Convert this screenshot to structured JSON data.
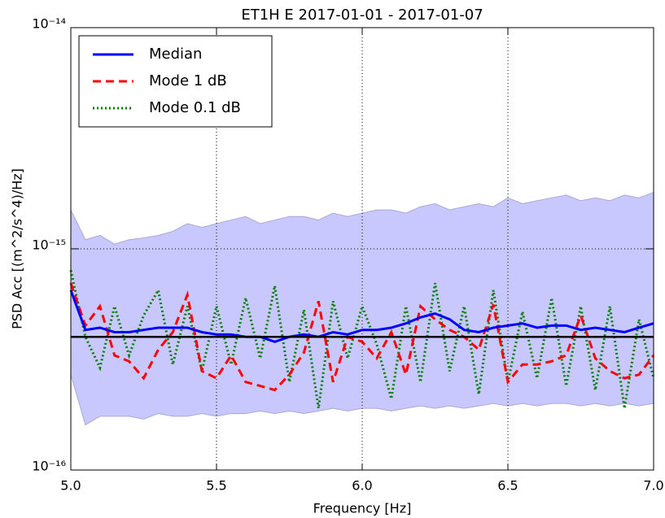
{
  "chart_data": {
    "type": "line",
    "title": "ET1H E 2017-01-01 - 2017-01-07",
    "xlabel": "Frequency [Hz]",
    "ylabel": "PSD Acc [(m^2/s^4)/Hz]",
    "log_y": true,
    "legend": "upper left",
    "xlim": [
      5.0,
      7.0
    ],
    "ylim": [
      1e-16,
      1e-14
    ],
    "xticks": [
      {
        "value": 5.0,
        "label": "5.0"
      },
      5.5,
      {
        "value": 6.0,
        "label": "6.0"
      },
      6.5,
      {
        "value": 7.0,
        "label": "7.0"
      }
    ],
    "yticks": [
      {
        "value": 1e-16,
        "label": "10⁻¹⁶"
      },
      {
        "value": 1e-15,
        "label": "10⁻¹⁵"
      },
      {
        "value": 1e-14,
        "label": "10⁻¹⁴"
      }
    ],
    "grid": true,
    "x": [
      5.0,
      5.05,
      5.1,
      5.15,
      5.2,
      5.25,
      5.3,
      5.35,
      5.4,
      5.45,
      5.5,
      5.55,
      5.6,
      5.65,
      5.7,
      5.75,
      5.8,
      5.85,
      5.9,
      5.95,
      6.0,
      6.05,
      6.1,
      6.15,
      6.2,
      6.25,
      6.3,
      6.35,
      6.4,
      6.45,
      6.5,
      6.55,
      6.6,
      6.65,
      6.7,
      6.75,
      6.8,
      6.85,
      6.9,
      6.95,
      7.0
    ],
    "band": {
      "color": "#c8c8ff",
      "upper": [
        1.5e-15,
        1.1e-15,
        1.15e-15,
        1.05e-15,
        1.1e-15,
        1.12e-15,
        1.15e-15,
        1.2e-15,
        1.3e-15,
        1.25e-15,
        1.3e-15,
        1.35e-15,
        1.4e-15,
        1.3e-15,
        1.35e-15,
        1.4e-15,
        1.4e-15,
        1.35e-15,
        1.45e-15,
        1.4e-15,
        1.45e-15,
        1.5e-15,
        1.5e-15,
        1.45e-15,
        1.55e-15,
        1.6e-15,
        1.5e-15,
        1.55e-15,
        1.6e-15,
        1.55e-15,
        1.7e-15,
        1.6e-15,
        1.65e-15,
        1.7e-15,
        1.75e-15,
        1.65e-15,
        1.7e-15,
        1.65e-15,
        1.75e-15,
        1.7e-15,
        1.8e-15
      ],
      "lower": [
        2.7e-16,
        1.6e-16,
        1.75e-16,
        1.75e-16,
        1.75e-16,
        1.7e-16,
        1.8e-16,
        1.75e-16,
        1.75e-16,
        1.8e-16,
        1.75e-16,
        1.8e-16,
        1.8e-16,
        1.85e-16,
        1.8e-16,
        1.85e-16,
        1.8e-16,
        1.85e-16,
        1.9e-16,
        1.85e-16,
        1.9e-16,
        1.9e-16,
        1.85e-16,
        1.9e-16,
        1.95e-16,
        1.9e-16,
        1.95e-16,
        1.9e-16,
        1.95e-16,
        2e-16,
        1.95e-16,
        2e-16,
        1.95e-16,
        2e-16,
        2e-16,
        1.95e-16,
        2e-16,
        1.95e-16,
        2e-16,
        1.95e-16,
        2e-16
      ]
    },
    "reference_line": {
      "value": 4e-16,
      "color": "#000000"
    },
    "series": [
      {
        "name": "Median",
        "color": "#0000ff",
        "linestyle": "solid",
        "values": [
          6.5e-16,
          4.3e-16,
          4.4e-16,
          4.2e-16,
          4.2e-16,
          4.3e-16,
          4.4e-16,
          4.4e-16,
          4.4e-16,
          4.2e-16,
          4.1e-16,
          4.1e-16,
          4e-16,
          4e-16,
          3.8e-16,
          4e-16,
          4.1e-16,
          4e-16,
          4.2e-16,
          4.1e-16,
          4.3e-16,
          4.3e-16,
          4.4e-16,
          4.6e-16,
          4.9e-16,
          5.1e-16,
          4.8e-16,
          4.3e-16,
          4.2e-16,
          4.4e-16,
          4.5e-16,
          4.6e-16,
          4.4e-16,
          4.5e-16,
          4.5e-16,
          4.3e-16,
          4.4e-16,
          4.3e-16,
          4.2e-16,
          4.4e-16,
          4.6e-16
        ]
      },
      {
        "name": "Mode 1 dB",
        "color": "#ff0000",
        "linestyle": "dashed",
        "values": [
          7e-16,
          4.5e-16,
          5.5e-16,
          3.3e-16,
          3.1e-16,
          2.6e-16,
          3.5e-16,
          4.2e-16,
          6.2e-16,
          2.8e-16,
          2.6e-16,
          3.3e-16,
          2.5e-16,
          2.4e-16,
          2.3e-16,
          2.7e-16,
          3.4e-16,
          5.8e-16,
          2.5e-16,
          4e-16,
          3.8e-16,
          3.2e-16,
          4.2e-16,
          2.7e-16,
          5.5e-16,
          4.8e-16,
          4.3e-16,
          4e-16,
          3.5e-16,
          5.6e-16,
          2.5e-16,
          3e-16,
          3e-16,
          3.1e-16,
          3.3e-16,
          5e-16,
          3.2e-16,
          2.8e-16,
          2.6e-16,
          2.7e-16,
          3.3e-16
        ]
      },
      {
        "name": "Mode 0.1 dB",
        "color": "#007f00",
        "linestyle": "dotted",
        "values": [
          8e-16,
          4e-16,
          2.9e-16,
          5.5e-16,
          3.3e-16,
          5e-16,
          6.5e-16,
          3e-16,
          5.5e-16,
          2.8e-16,
          5.5e-16,
          3e-16,
          6e-16,
          3.2e-16,
          6.8e-16,
          2.5e-16,
          5.3e-16,
          1.9e-16,
          5.8e-16,
          3.2e-16,
          5.5e-16,
          3.7e-16,
          2.1e-16,
          5.5e-16,
          2.5e-16,
          7e-16,
          2.8e-16,
          5.5e-16,
          2.2e-16,
          6.5e-16,
          2.5e-16,
          5.2e-16,
          2.6e-16,
          6e-16,
          2.4e-16,
          5.5e-16,
          2.3e-16,
          5.5e-16,
          1.9e-16,
          4.8e-16,
          2.6e-16
        ]
      }
    ]
  }
}
